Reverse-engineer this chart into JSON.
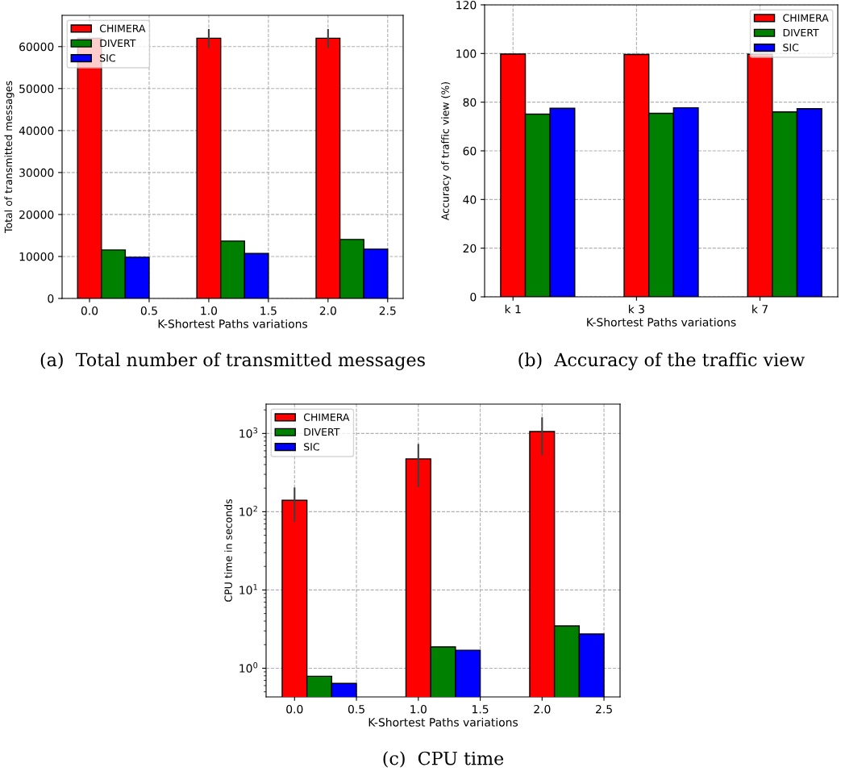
{
  "chart_data": [
    {
      "type": "bar",
      "xlabel": "K-Shortest Paths variations",
      "ylabel": "Total of transmitted messages",
      "annotations": [
        "(a)  Total number of transmitted messages"
      ],
      "xlim": [
        -0.23,
        2.63
      ],
      "xticks": [
        {
          "value": 0,
          "label": "0.0"
        },
        {
          "value": 0.5,
          "label": "0.5"
        },
        {
          "value": 1,
          "label": "1.0"
        },
        {
          "value": 1.5,
          "label": "1.5"
        },
        {
          "value": 2,
          "label": "2.0"
        },
        {
          "value": 2.5,
          "label": "2.5"
        }
      ],
      "ylim": [
        0,
        67450
      ],
      "yticks": [
        0,
        10000,
        20000,
        30000,
        40000,
        50000,
        60000
      ],
      "grid": true,
      "legend": "top left",
      "series": [
        {
          "name": "CHIMERA",
          "color": "#ff0000",
          "x": [
            0,
            1,
            2
          ],
          "values": [
            62000,
            62000,
            62000
          ],
          "errors": [
            null,
            [
              59700,
              64200
            ],
            [
              59700,
              64200
            ]
          ]
        },
        {
          "name": "DIVERT",
          "color": "#008000",
          "x": [
            0.2,
            1.2,
            2.2
          ],
          "values": [
            11550,
            13670,
            14060
          ]
        },
        {
          "name": "SIC",
          "color": "#0000ff",
          "x": [
            0.4,
            1.4,
            2.4
          ],
          "values": [
            9820,
            10720,
            11750
          ]
        }
      ]
    },
    {
      "type": "bar",
      "xlabel": "K-Shortest Paths variations",
      "ylabel": "Accuracy of traffic view (%)",
      "annotations": [
        "(b)  Accuracy of the traffic view"
      ],
      "categories": [
        "k 1",
        "k 3",
        "k 7"
      ],
      "ylim": [
        0,
        120
      ],
      "yticks": [
        0,
        20,
        40,
        60,
        80,
        100,
        120
      ],
      "grid": true,
      "legend": "top right",
      "series": [
        {
          "name": "CHIMERA",
          "color": "#ff0000",
          "values": [
            99.8,
            99.6,
            99.7
          ]
        },
        {
          "name": "DIVERT",
          "color": "#008000",
          "values": [
            75.1,
            75.4,
            76.0
          ]
        },
        {
          "name": "SIC",
          "color": "#0000ff",
          "values": [
            77.5,
            77.7,
            77.3
          ]
        }
      ]
    },
    {
      "type": "bar",
      "xlabel": "K-Shortest Paths variations",
      "ylabel": "CPU time in seconds",
      "annotations": [
        "(c)  CPU time"
      ],
      "log": "y",
      "xlim": [
        -0.23,
        2.63
      ],
      "xticks": [
        {
          "value": 0,
          "label": "0.0"
        },
        {
          "value": 0.5,
          "label": "0.5"
        },
        {
          "value": 1,
          "label": "1.0"
        },
        {
          "value": 1.5,
          "label": "1.5"
        },
        {
          "value": 2,
          "label": "2.0"
        },
        {
          "value": 2.5,
          "label": "2.5"
        }
      ],
      "ylim": [
        0.43,
        2370
      ],
      "yticks": [
        {
          "value": 1,
          "label": "10$^{0}$"
        },
        {
          "value": 10,
          "label": "10$^{1}$"
        },
        {
          "value": 100,
          "label": "10$^{2}$"
        },
        {
          "value": 1000,
          "label": "10$^{3}$"
        }
      ],
      "grid": true,
      "legend": "top left",
      "series": [
        {
          "name": "CHIMERA",
          "color": "#ff0000",
          "x": [
            0,
            1,
            2
          ],
          "values": [
            140,
            473,
            1057
          ],
          "errors": [
            [
              74,
              204
            ],
            [
              208,
              735
            ],
            [
              526,
              1611
            ]
          ]
        },
        {
          "name": "DIVERT",
          "color": "#008000",
          "x": [
            0.2,
            1.2,
            2.2
          ],
          "values": [
            0.79,
            1.87,
            3.47
          ]
        },
        {
          "name": "SIC",
          "color": "#0000ff",
          "x": [
            0.4,
            1.4,
            2.4
          ],
          "values": [
            0.64,
            1.7,
            2.74
          ]
        }
      ]
    }
  ]
}
